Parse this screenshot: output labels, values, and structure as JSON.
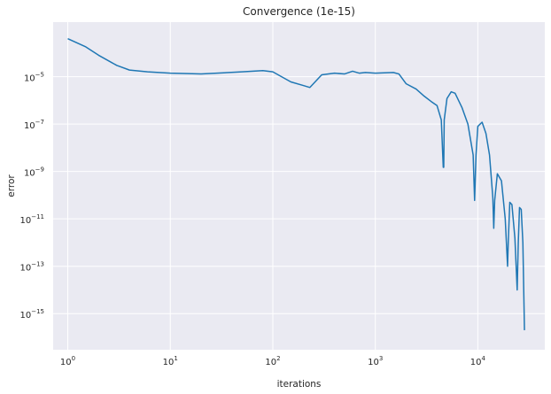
{
  "chart_data": {
    "type": "line",
    "title": "Convergence (1e-15)",
    "xlabel": "iterations",
    "ylabel": "error",
    "xscale": "log",
    "yscale": "log",
    "xlim": [
      0.72,
      45000
    ],
    "ylim": [
      3e-17,
      0.002
    ],
    "grid": true,
    "background": "#eaeaf2",
    "grid_color": "#ffffff",
    "line_color": "#1f77b4",
    "x_ticks": [
      {
        "value": 1,
        "label_base": "10",
        "label_exp": "0"
      },
      {
        "value": 10,
        "label_base": "10",
        "label_exp": "1"
      },
      {
        "value": 100,
        "label_base": "10",
        "label_exp": "2"
      },
      {
        "value": 1000,
        "label_base": "10",
        "label_exp": "3"
      },
      {
        "value": 10000,
        "label_base": "10",
        "label_exp": "4"
      }
    ],
    "y_ticks": [
      {
        "value": 1e-15,
        "label_base": "10",
        "label_exp": "−15"
      },
      {
        "value": 1e-13,
        "label_base": "10",
        "label_exp": "−13"
      },
      {
        "value": 1e-11,
        "label_base": "10",
        "label_exp": "−11"
      },
      {
        "value": 1e-09,
        "label_base": "10",
        "label_exp": "−9"
      },
      {
        "value": 1e-07,
        "label_base": "10",
        "label_exp": "−7"
      },
      {
        "value": 1e-05,
        "label_base": "10",
        "label_exp": "−5"
      }
    ],
    "series": [
      {
        "x": [
          1,
          1.5,
          2,
          3,
          4,
          6,
          10,
          20,
          50,
          80,
          100,
          150,
          200,
          230,
          300,
          400,
          500,
          600,
          700,
          800,
          1000,
          1500,
          1700,
          2000,
          2500,
          3000,
          3500,
          4000,
          4400,
          4600,
          4650,
          4700,
          5000,
          5500,
          6000,
          7000,
          8000,
          9000,
          9300,
          9600,
          10000,
          11000,
          12000,
          13000,
          14000,
          14300,
          14600,
          15500,
          17000,
          18500,
          19500,
          19800,
          20500,
          21500,
          23000,
          24200,
          24800,
          25500,
          26500,
          27500,
          28500
        ],
        "y": [
          0.0004,
          0.00018,
          8e-05,
          3e-05,
          1.9e-05,
          1.6e-05,
          1.4e-05,
          1.3e-05,
          1.6e-05,
          1.8e-05,
          1.6e-05,
          6e-06,
          4.2e-06,
          3.5e-06,
          1.2e-05,
          1.4e-05,
          1.3e-05,
          1.7e-05,
          1.4e-05,
          1.5e-05,
          1.4e-05,
          1.5e-05,
          1.3e-05,
          5e-06,
          3e-06,
          1.5e-06,
          9e-07,
          6e-07,
          1.5e-07,
          1.5e-09,
          1.5e-09,
          1.5e-07,
          1.2e-06,
          2.3e-06,
          2e-06,
          5e-07,
          1e-07,
          5e-09,
          6e-11,
          5e-09,
          8e-08,
          1.2e-07,
          4e-08,
          5e-09,
          8e-11,
          4e-12,
          6e-11,
          8e-10,
          4e-10,
          1e-11,
          1e-13,
          1e-12,
          5e-11,
          4e-11,
          1.5e-12,
          1e-14,
          1e-12,
          3e-11,
          2.5e-11,
          1e-12,
          2e-16
        ]
      }
    ]
  }
}
